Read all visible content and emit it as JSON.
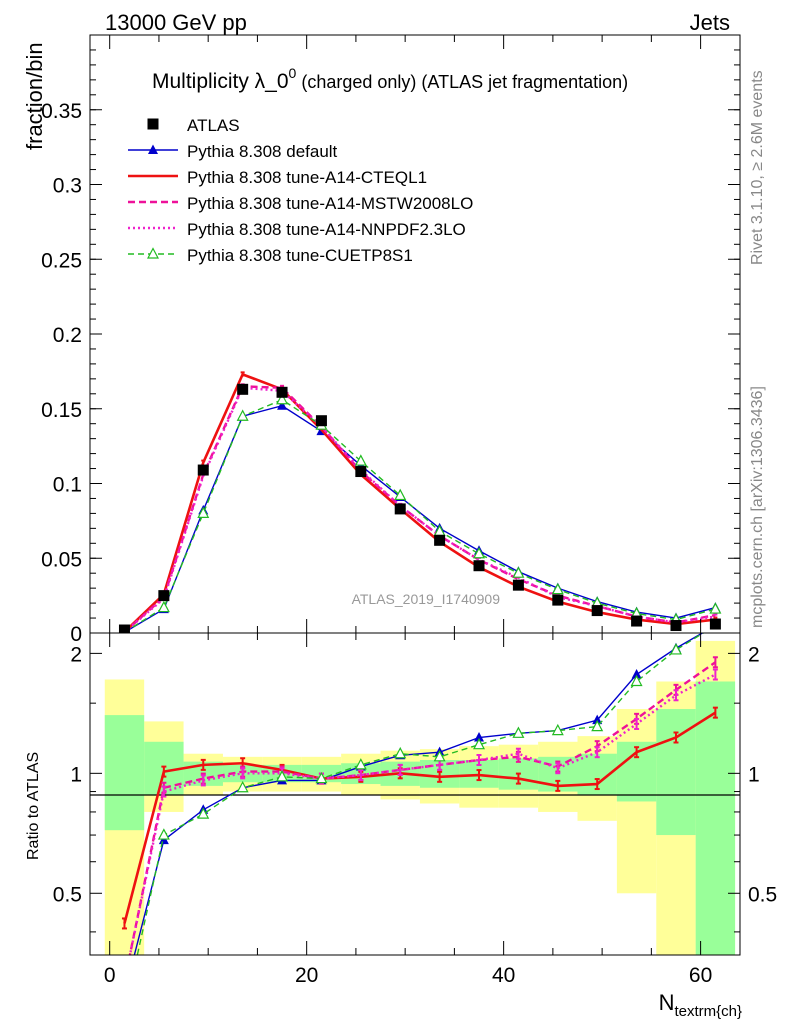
{
  "header": {
    "left": "13000 GeV pp",
    "right": "Jets"
  },
  "title_main": "Multiplicity λ_0",
  "title_sup": "0",
  "title_rest": " (charged only) (ATLAS jet fragmentation)",
  "side_labels": {
    "rivet": "Rivet 3.1.10, ≥ 2.6M events",
    "mcplots": "mcplots.cern.ch [arXiv:1306.3436]"
  },
  "analysis_label": "ATLAS_2019_I1740909",
  "xlabel_main": "N",
  "xlabel_sub": "textrm{ch}",
  "colors": {
    "data": "#000000",
    "default": "#0000cc",
    "cteql1": "#ee1111",
    "mstw": "#ee1199",
    "nnpdf": "#ee22cc",
    "cuetp8s1": "#22bb22",
    "band_inner": "#99ff99",
    "band_outer": "#ffff99"
  },
  "chart_data": [
    {
      "type": "line",
      "panel": "main",
      "ylabel": "fraction/bin",
      "xlim": [
        -2,
        64
      ],
      "ylim": [
        0,
        0.4
      ],
      "x_ticks": [
        0,
        20,
        40,
        60
      ],
      "y_ticks": [
        "0",
        "0.05",
        "0.1",
        "0.15",
        "0.2",
        "0.25",
        "0.3",
        "0.35"
      ],
      "x": [
        1.5,
        5.5,
        9.5,
        13.5,
        17.5,
        21.5,
        25.5,
        29.5,
        33.5,
        37.5,
        41.5,
        45.5,
        49.5,
        53.5,
        57.5,
        61.5
      ],
      "series": [
        {
          "name": "ATLAS",
          "style": "data",
          "values": [
            0.002,
            0.025,
            0.109,
            0.163,
            0.161,
            0.142,
            0.108,
            0.083,
            0.062,
            0.045,
            0.032,
            0.022,
            0.015,
            0.008,
            0.005,
            0.006
          ]
        },
        {
          "name": "Pythia 8.308 default",
          "style": "default",
          "values": [
            0.0005,
            0.016,
            0.082,
            0.145,
            0.152,
            0.135,
            0.112,
            0.091,
            0.07,
            0.055,
            0.041,
            0.03,
            0.021,
            0.014,
            0.01,
            0.017
          ]
        },
        {
          "name": "Pythia 8.308 tune-A14-CTEQL1",
          "style": "cteql1",
          "values": [
            0.0007,
            0.026,
            0.114,
            0.173,
            0.163,
            0.136,
            0.106,
            0.083,
            0.061,
            0.044,
            0.031,
            0.021,
            0.014,
            0.009,
            0.006,
            0.009
          ]
        },
        {
          "name": "Pythia 8.308 tune-A14-MSTW2008LO",
          "style": "mstw",
          "values": [
            0.0006,
            0.024,
            0.106,
            0.165,
            0.164,
            0.138,
            0.108,
            0.085,
            0.065,
            0.049,
            0.036,
            0.025,
            0.018,
            0.011,
            0.007,
            0.012
          ]
        },
        {
          "name": "Pythia 8.308 tune-A14-NNPDF2.3LO",
          "style": "nnpdf",
          "values": [
            0.0006,
            0.023,
            0.105,
            0.164,
            0.162,
            0.138,
            0.109,
            0.085,
            0.065,
            0.049,
            0.037,
            0.024,
            0.018,
            0.011,
            0.007,
            0.011
          ]
        },
        {
          "name": "Pythia 8.308 tune-CUETP8S1",
          "style": "cuetp8s1",
          "values": [
            0.0005,
            0.017,
            0.08,
            0.145,
            0.156,
            0.139,
            0.115,
            0.092,
            0.068,
            0.053,
            0.04,
            0.029,
            0.02,
            0.013,
            0.009,
            0.016
          ]
        }
      ]
    },
    {
      "type": "line",
      "panel": "ratio",
      "ylabel": "Ratio to ATLAS",
      "xlim": [
        -2,
        64
      ],
      "ylim": [
        0.35,
        2.25
      ],
      "y_ticks": [
        "0.5",
        "1",
        "2"
      ],
      "x": [
        1.5,
        5.5,
        9.5,
        13.5,
        17.5,
        21.5,
        25.5,
        29.5,
        33.5,
        37.5,
        41.5,
        45.5,
        49.5,
        53.5,
        57.5,
        61.5
      ],
      "bin_edges": [
        -0.5,
        3.5,
        7.5,
        11.5,
        15.5,
        19.5,
        23.5,
        27.5,
        31.5,
        35.5,
        39.5,
        43.5,
        47.5,
        51.5,
        55.5,
        59.5,
        63.5
      ],
      "band_inner": [
        [
          0.72,
          1.4
        ],
        [
          0.88,
          1.2
        ],
        [
          0.93,
          1.07
        ],
        [
          0.95,
          1.05
        ],
        [
          0.95,
          1.05
        ],
        [
          0.95,
          1.05
        ],
        [
          0.94,
          1.06
        ],
        [
          0.93,
          1.07
        ],
        [
          0.92,
          1.08
        ],
        [
          0.92,
          1.08
        ],
        [
          0.91,
          1.09
        ],
        [
          0.9,
          1.1
        ],
        [
          0.88,
          1.12
        ],
        [
          0.85,
          1.2
        ],
        [
          0.7,
          1.45
        ],
        [
          0.3,
          1.7
        ]
      ],
      "band_outer": [
        [
          0.3,
          1.72
        ],
        [
          0.8,
          1.35
        ],
        [
          0.88,
          1.12
        ],
        [
          0.9,
          1.1
        ],
        [
          0.9,
          1.1
        ],
        [
          0.9,
          1.1
        ],
        [
          0.88,
          1.12
        ],
        [
          0.86,
          1.14
        ],
        [
          0.84,
          1.15
        ],
        [
          0.82,
          1.17
        ],
        [
          0.82,
          1.18
        ],
        [
          0.8,
          1.2
        ],
        [
          0.76,
          1.24
        ],
        [
          0.5,
          1.45
        ],
        [
          0.35,
          1.7
        ],
        [
          0.3,
          2.15
        ]
      ],
      "series": [
        {
          "name": "Pythia 8.308 default",
          "style": "default",
          "values": [
            0.28,
            0.68,
            0.81,
            0.92,
            0.96,
            0.96,
            1.04,
            1.11,
            1.13,
            1.23,
            1.26,
            1.28,
            1.36,
            1.77,
            2.06,
            2.35
          ]
        },
        {
          "name": "Pythia 8.308 tune-A14-CTEQL1",
          "style": "cteql1",
          "values": [
            0.42,
            1.01,
            1.05,
            1.06,
            1.02,
            0.97,
            0.98,
            1.0,
            0.98,
            0.99,
            0.97,
            0.93,
            0.94,
            1.13,
            1.23,
            1.42
          ]
        },
        {
          "name": "Pythia 8.308 tune-A14-MSTW2008LO",
          "style": "mstw",
          "values": [
            0.3,
            0.92,
            0.97,
            1.01,
            1.01,
            0.97,
            0.99,
            1.02,
            1.05,
            1.08,
            1.1,
            1.04,
            1.17,
            1.37,
            1.62,
            1.9
          ]
        },
        {
          "name": "Pythia 8.308 tune-A14-NNPDF2.3LO",
          "style": "nnpdf",
          "values": [
            0.3,
            0.9,
            0.96,
            1.0,
            1.0,
            0.97,
            0.99,
            1.02,
            1.05,
            1.08,
            1.12,
            1.03,
            1.13,
            1.33,
            1.57,
            1.77
          ]
        },
        {
          "name": "Pythia 8.308 tune-CUETP8S1",
          "style": "cuetp8s1",
          "values": [
            0.25,
            0.7,
            0.79,
            0.92,
            0.98,
            0.97,
            1.05,
            1.12,
            1.1,
            1.18,
            1.26,
            1.28,
            1.31,
            1.7,
            2.04,
            2.35
          ]
        }
      ]
    }
  ]
}
